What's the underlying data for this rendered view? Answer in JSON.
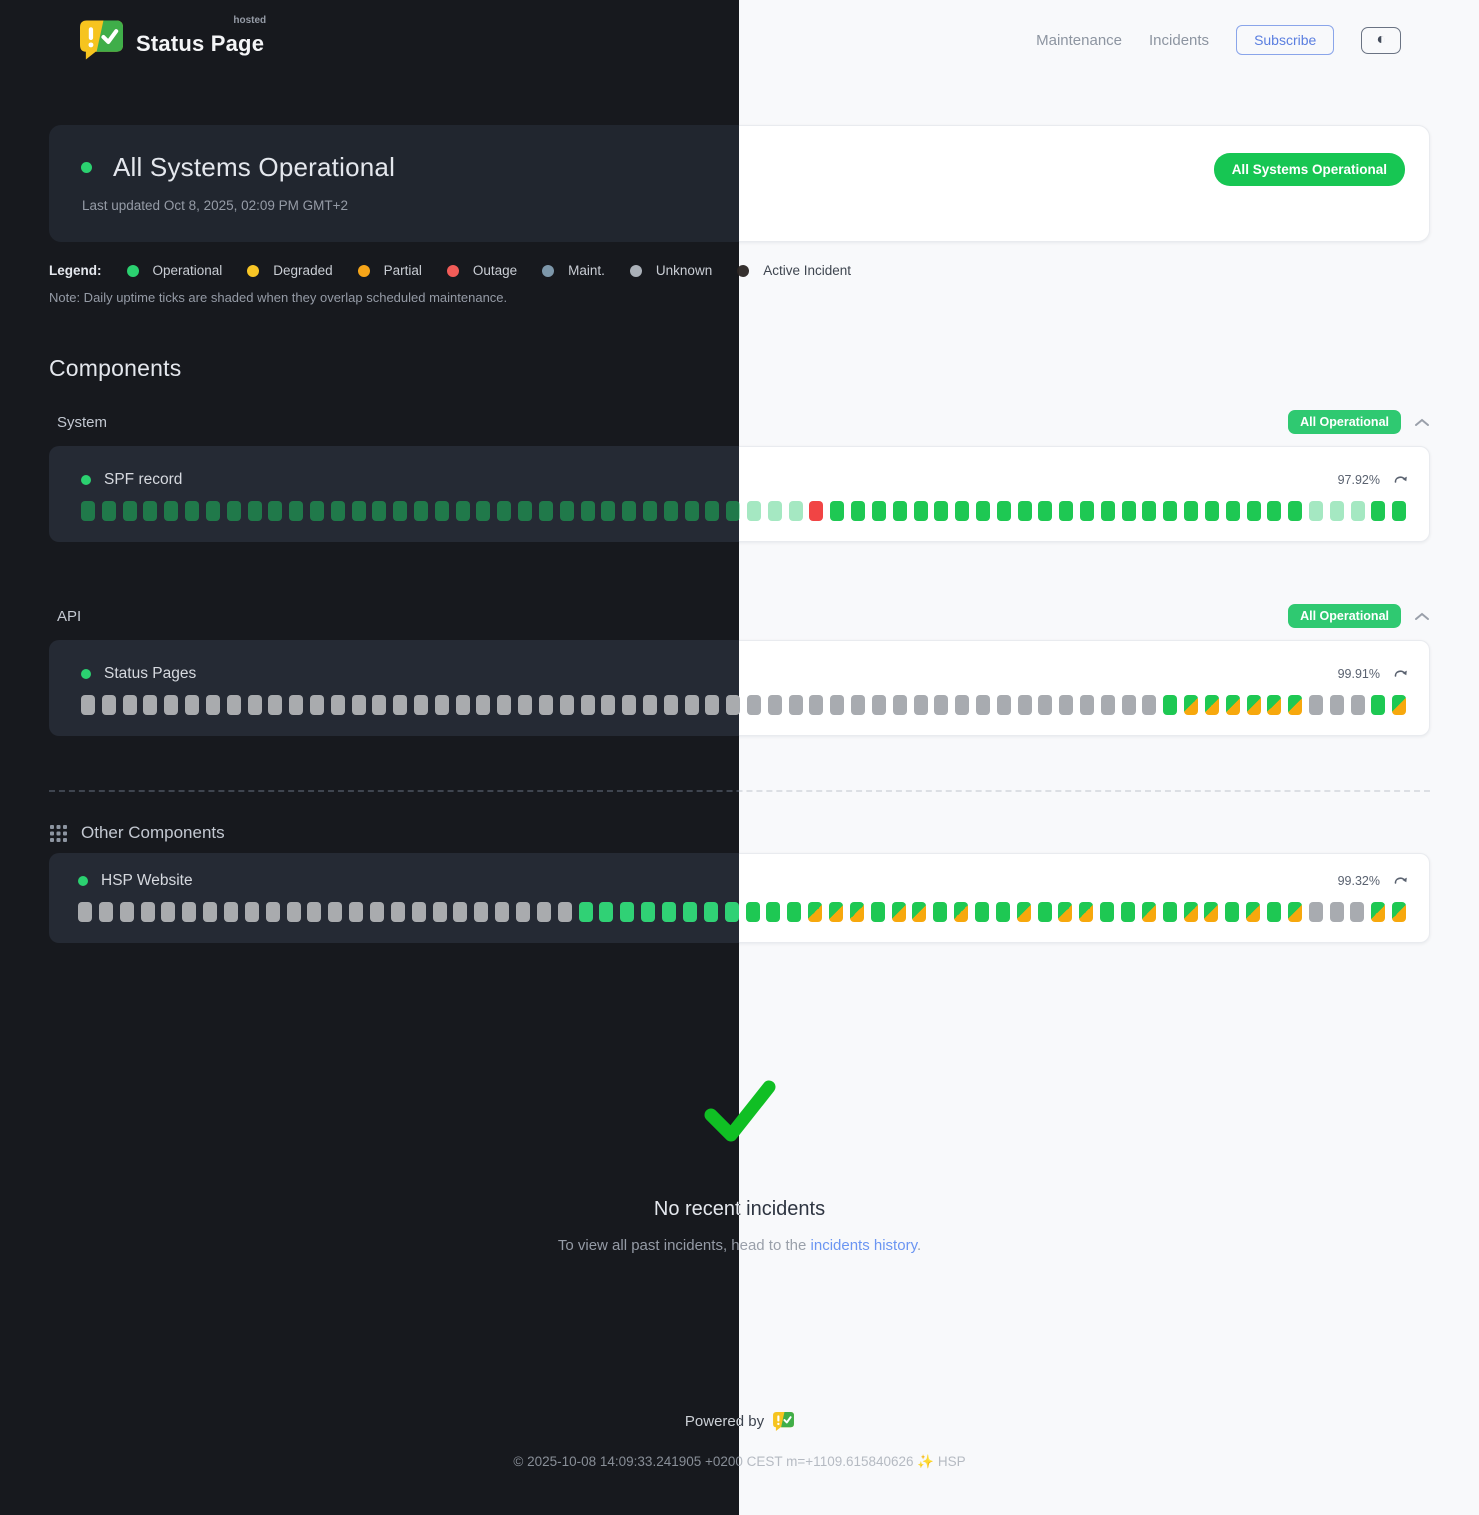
{
  "header": {
    "brand": {
      "name": "Status Page",
      "superscript": "hosted"
    },
    "nav": [
      {
        "label": "Maintenance"
      },
      {
        "label": "Incidents"
      }
    ],
    "subscribe_label": "Subscribe",
    "theme_toggle_icon": "◐"
  },
  "hero": {
    "title": "All Systems Operational",
    "last_updated": "Last updated Oct 8, 2025, 02:09 PM GMT+2",
    "badge": "All Systems Operational"
  },
  "legend": {
    "label": "Legend:",
    "items": [
      {
        "label": "Operational",
        "color": "#2bd170"
      },
      {
        "label": "Degraded",
        "color": "#f8c626"
      },
      {
        "label": "Partial",
        "color": "#f6a519"
      },
      {
        "label": "Outage",
        "color": "#f25c58"
      },
      {
        "label": "Maint.",
        "color": "#7d97aa"
      },
      {
        "label": "Unknown",
        "color": "#aab0b8"
      },
      {
        "label": "Active Incident",
        "color": "#2a2423"
      }
    ],
    "note": "Note: Daily uptime ticks are shaded when they overlap scheduled maintenance."
  },
  "components": {
    "heading": "Components",
    "tick_statuses": {
      "op": "operational",
      "dim": "operational-shaded",
      "unk": "unknown",
      "out": "outage",
      "mx": "operational-with-maintenance-overlap"
    },
    "groups": [
      {
        "name": "System",
        "badge": "All Operational",
        "items": [
          {
            "name": "SPF record",
            "uptime": "97.92%",
            "ticks": [
              [
                "dim",
                35
              ],
              [
                "out",
                1
              ],
              [
                "op",
                23
              ],
              [
                "dim",
                3
              ],
              [
                "op",
                2
              ]
            ]
          }
        ]
      },
      {
        "name": "API",
        "badge": "All Operational",
        "items": [
          {
            "name": "Status Pages",
            "uptime": "99.91%",
            "ticks": [
              [
                "unk",
                52
              ],
              [
                "op",
                1
              ],
              [
                "mx",
                6
              ],
              [
                "unk",
                3
              ],
              [
                "op",
                1
              ],
              [
                "mx",
                1
              ]
            ]
          }
        ]
      }
    ],
    "other": {
      "heading": "Other Components",
      "items": [
        {
          "name": "HSP Website",
          "uptime": "99.32%",
          "ticks": [
            [
              "unk",
              24
            ],
            [
              "op",
              11
            ],
            [
              "mx",
              3
            ],
            [
              "op",
              1
            ],
            [
              "mx",
              2
            ],
            [
              "op",
              1
            ],
            [
              "mx",
              1
            ],
            [
              "op",
              2
            ],
            [
              "mx",
              1
            ],
            [
              "op",
              1
            ],
            [
              "mx",
              2
            ],
            [
              "op",
              2
            ],
            [
              "mx",
              1
            ],
            [
              "op",
              1
            ],
            [
              "mx",
              2
            ],
            [
              "op",
              1
            ],
            [
              "mx",
              1
            ],
            [
              "op",
              1
            ],
            [
              "mx",
              1
            ],
            [
              "unk",
              3
            ],
            [
              "mx",
              2
            ]
          ]
        }
      ]
    }
  },
  "incidents_empty": {
    "title": "No recent incidents",
    "subtitle_prefix": "To view all past incidents, head to the ",
    "link_label": "incidents history",
    "subtitle_suffix": "."
  },
  "footer": {
    "powered_by": "Powered by",
    "copyright": "© 2025-10-08 14:09:33.241905 +0200 CEST m=+1109.615840626 ✨ HSP"
  },
  "colors": {
    "hero_badge_green": "#17c653",
    "group_badge_green": "#2fc971",
    "tick_operational_light": "#1ec853",
    "tick_operational_dark": "#30d175",
    "tick_shaded_pale": "#a5e8c2",
    "tick_shaded_dark": "#20794a",
    "tick_unknown": "#a8abb0",
    "tick_outage": "#f14444",
    "maintenance_orange": "#f7a80d",
    "link_blue": "#6b95f2",
    "subscribe_blue": "#5b7fe0",
    "check_green": "#10bf24",
    "logo_yellow": "#f6c41f",
    "logo_green": "#3fae49"
  }
}
